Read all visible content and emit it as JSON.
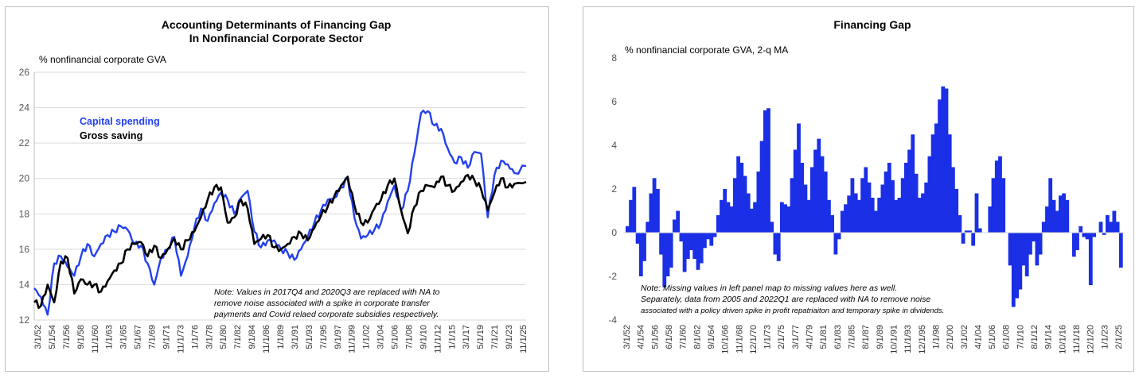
{
  "chart_data": [
    {
      "type": "line",
      "title_line1": "Accounting Determinants of Financing Gap",
      "title_line2": "In Nonfinancial Corporate Sector",
      "ylabel": "% nonfinancial corporate GVA",
      "ylim": [
        12,
        26
      ],
      "yticks": [
        "12",
        "14",
        "16",
        "18",
        "20",
        "22",
        "24",
        "26"
      ],
      "xticks": [
        "3/1/52",
        "5/1/54",
        "7/1/56",
        "9/1/58",
        "11/1/60",
        "1/1/63",
        "3/1/65",
        "5/1/67",
        "7/1/69",
        "9/1/71",
        "11/1/73",
        "1/1/76",
        "3/1/78",
        "5/1/80",
        "7/1/82",
        "9/1/84",
        "11/1/86",
        "1/1/89",
        "3/1/91",
        "5/1/93",
        "7/1/95",
        "9/1/97",
        "11/1/99",
        "1/1/02",
        "3/1/04",
        "5/1/06",
        "7/1/08",
        "9/1/10",
        "11/1/12",
        "1/1/15",
        "3/1/17",
        "5/1/19",
        "7/1/21",
        "9/1/23",
        "11/1/25"
      ],
      "x_start_year": 1952.0,
      "x_end_year": 2025.75,
      "series": [
        {
          "name": "Capital spending",
          "color": "#2340f0",
          "x": [
            1952,
            1953,
            1954,
            1955,
            1956,
            1957,
            1958,
            1959,
            1960,
            1961,
            1962,
            1963,
            1964,
            1965,
            1966,
            1967,
            1968,
            1969,
            1970,
            1971,
            1972,
            1973,
            1974,
            1975,
            1976,
            1977,
            1978,
            1979,
            1980,
            1981,
            1982,
            1983,
            1984,
            1985,
            1986,
            1987,
            1988,
            1989,
            1990,
            1991,
            1992,
            1993,
            1994,
            1995,
            1996,
            1997,
            1998,
            1999,
            2000,
            2001,
            2002,
            2003,
            2004,
            2005,
            2006,
            2007,
            2008,
            2009,
            2010,
            2011,
            2012,
            2013,
            2014,
            2015,
            2016,
            2017,
            2018,
            2019,
            2020,
            2021,
            2022,
            2023,
            2024,
            2025.75
          ],
          "values": [
            13.8,
            13.3,
            12.3,
            15.2,
            15.6,
            15.0,
            14.5,
            15.6,
            16.3,
            15.6,
            16.3,
            16.8,
            17.0,
            17.3,
            17.1,
            16.3,
            16.2,
            15.2,
            14.0,
            15.5,
            16.0,
            16.7,
            14.5,
            15.6,
            17.2,
            18.3,
            17.6,
            18.6,
            19.2,
            18.8,
            18.0,
            18.9,
            19.3,
            17.0,
            16.1,
            16.5,
            16.5,
            16.0,
            15.8,
            15.4,
            16.0,
            16.7,
            17.5,
            18.2,
            18.8,
            18.9,
            19.5,
            20.0,
            17.8,
            16.6,
            16.8,
            17.1,
            17.5,
            18.7,
            19.6,
            18.2,
            19.3,
            21.4,
            23.7,
            23.8,
            23.0,
            22.8,
            21.7,
            20.9,
            21.2,
            20.6,
            21.5,
            21.4,
            17.8,
            20.2,
            21.0,
            20.8,
            20.3,
            20.7
          ]
        },
        {
          "name": "Gross saving",
          "color": "#000000",
          "x": [
            1952,
            1953,
            1954,
            1955,
            1956,
            1957,
            1958,
            1959,
            1960,
            1961,
            1962,
            1963,
            1964,
            1965,
            1966,
            1967,
            1968,
            1969,
            1970,
            1971,
            1972,
            1973,
            1974,
            1975,
            1976,
            1977,
            1978,
            1979,
            1980,
            1981,
            1982,
            1983,
            1984,
            1985,
            1986,
            1987,
            1988,
            1989,
            1990,
            1991,
            1992,
            1993,
            1994,
            1995,
            1996,
            1997,
            1998,
            1999,
            2000,
            2001,
            2002,
            2003,
            2004,
            2005,
            2006,
            2007,
            2008,
            2009,
            2010,
            2011,
            2012,
            2013,
            2014,
            2015,
            2016,
            2017,
            2018,
            2019,
            2020,
            2021,
            2022,
            2023,
            2024,
            2025.75
          ],
          "values": [
            13.0,
            12.8,
            14.0,
            13.0,
            15.3,
            15.5,
            13.5,
            14.3,
            14.0,
            14.0,
            13.6,
            14.2,
            14.8,
            15.2,
            16.0,
            16.3,
            16.4,
            15.6,
            16.2,
            15.5,
            16.0,
            16.6,
            16.0,
            16.5,
            17.0,
            17.8,
            18.8,
            19.5,
            19.5,
            17.5,
            17.8,
            18.8,
            18.3,
            16.3,
            16.6,
            16.8,
            16.1,
            16.0,
            16.3,
            16.7,
            16.9,
            16.5,
            17.2,
            17.9,
            18.4,
            19.0,
            19.6,
            20.1,
            18.5,
            17.5,
            17.5,
            18.3,
            18.8,
            19.6,
            20.0,
            18.2,
            16.9,
            18.4,
            19.3,
            19.6,
            19.5,
            20.1,
            19.6,
            19.3,
            19.8,
            20.2,
            19.9,
            19.4,
            18.2,
            19.2,
            20.0,
            19.5,
            19.7,
            19.8
          ]
        }
      ],
      "note_lines": [
        "Note: Values in 2017Q4 and 2020Q3 are replaced with NA to",
        "remove noise associated with a spike in corporate transfer",
        "payments and Covid relaed corporate subsidies respectively."
      ]
    },
    {
      "type": "bar",
      "title": "Financing Gap",
      "ylabel": "% nonfinancial corporate GVA, 2-q MA",
      "ylim": [
        -4,
        8
      ],
      "yticks": [
        "-4",
        "-2",
        "0",
        "2",
        "4",
        "6",
        "8"
      ],
      "xticks": [
        "3/1/52",
        "4/1/54",
        "5/1/56",
        "6/1/58",
        "7/1/60",
        "8/1/62",
        "9/1/64",
        "10/1/66",
        "11/1/68",
        "12/1/70",
        "1/1/73",
        "2/1/75",
        "3/1/77",
        "4/1/79",
        "5/1/81",
        "6/1/83",
        "7/1/85",
        "8/1/87",
        "9/1/89",
        "10/1/91",
        "11/1/93",
        "12/1/95",
        "1/1/98",
        "2/1/00",
        "3/1/02",
        "4/1/04",
        "5/1/06",
        "6/1/08",
        "7/1/10",
        "8/1/12",
        "9/1/14",
        "10/1/16",
        "11/1/18",
        "12/1/20",
        "1/1/23",
        "2/1/25"
      ],
      "x_start_year": 1952.0,
      "x_end_year": 2025.75,
      "color": "#1a2fe6",
      "x": [
        1952,
        1952.5,
        1953,
        1953.5,
        1954,
        1954.5,
        1955,
        1955.5,
        1956,
        1956.5,
        1957,
        1957.5,
        1958,
        1958.5,
        1959,
        1959.5,
        1960,
        1960.5,
        1961,
        1961.5,
        1962,
        1962.5,
        1963,
        1963.5,
        1964,
        1964.5,
        1965,
        1965.5,
        1966,
        1966.5,
        1967,
        1967.5,
        1968,
        1968.5,
        1969,
        1969.5,
        1970,
        1970.5,
        1971,
        1971.5,
        1972,
        1972.5,
        1973,
        1973.5,
        1974,
        1974.5,
        1975,
        1975.5,
        1976,
        1976.5,
        1977,
        1977.5,
        1978,
        1978.5,
        1979,
        1979.5,
        1980,
        1980.5,
        1981,
        1981.5,
        1982,
        1982.5,
        1983,
        1983.5,
        1984,
        1984.5,
        1985,
        1985.5,
        1986,
        1986.5,
        1987,
        1987.5,
        1988,
        1988.5,
        1989,
        1989.5,
        1990,
        1990.5,
        1991,
        1991.5,
        1992,
        1992.5,
        1993,
        1993.5,
        1994,
        1994.5,
        1995,
        1995.5,
        1996,
        1996.5,
        1997,
        1997.5,
        1998,
        1998.5,
        1999,
        1999.5,
        2000,
        2000.5,
        2001,
        2001.5,
        2002,
        2002.5,
        2003,
        2003.5,
        2004,
        2004.5,
        2005,
        2005.5,
        2006,
        2006.5,
        2007,
        2007.5,
        2008,
        2008.5,
        2009,
        2009.5,
        2010,
        2010.5,
        2011,
        2011.5,
        2012,
        2012.5,
        2013,
        2013.5,
        2014,
        2014.5,
        2015,
        2015.5,
        2016,
        2016.5,
        2017,
        2017.5,
        2018,
        2018.5,
        2019,
        2019.5,
        2020,
        2020.5,
        2021,
        2021.5,
        2022,
        2022.5,
        2023,
        2023.5,
        2024,
        2024.5,
        2025,
        2025.5
      ],
      "values": [
        0.3,
        1.5,
        2.1,
        -0.5,
        -2.0,
        -1.3,
        0.5,
        1.8,
        2.5,
        2.0,
        -1.0,
        -2.5,
        -2.0,
        -1.6,
        0.6,
        1.0,
        -0.4,
        -1.8,
        -1.2,
        -0.8,
        -1.2,
        -1.7,
        -1.4,
        -0.7,
        -0.3,
        -0.6,
        -0.2,
        0.8,
        1.5,
        2.0,
        1.4,
        1.2,
        2.5,
        3.5,
        3.2,
        2.6,
        1.8,
        1.1,
        1.4,
        2.8,
        4.2,
        5.6,
        5.7,
        0.5,
        -1.0,
        -1.3,
        1.4,
        1.3,
        1.2,
        2.5,
        3.8,
        5.0,
        3.2,
        2.2,
        1.5,
        3.0,
        3.8,
        4.3,
        3.5,
        2.8,
        1.5,
        0.8,
        -1.0,
        -0.3,
        1.0,
        1.3,
        1.7,
        2.5,
        1.8,
        1.5,
        2.5,
        3.0,
        2.3,
        1.6,
        1.0,
        1.6,
        2.2,
        2.8,
        3.2,
        2.4,
        1.5,
        1.6,
        2.5,
        3.2,
        3.8,
        4.5,
        2.7,
        1.6,
        1.8,
        2.3,
        3.5,
        4.5,
        5.0,
        6.1,
        6.7,
        6.6,
        4.5,
        3.0,
        2.0,
        0.8,
        -0.5,
        0.1,
        0.1,
        -0.6,
        1.8,
        0.2,
        0.0,
        0.0,
        1.2,
        2.5,
        3.3,
        3.5,
        2.5,
        0.0,
        -1.5,
        -3.4,
        -3.0,
        -2.6,
        -1.5,
        -2.0,
        -1.0,
        -0.4,
        -1.5,
        -1.0,
        0.5,
        1.2,
        2.5,
        1.5,
        1.0,
        1.7,
        1.8,
        1.5,
        0.0,
        -1.1,
        -0.8,
        0.3,
        -0.2,
        -0.3,
        -2.4,
        -0.2,
        0.0,
        0.5,
        -0.1,
        0.8,
        0.5,
        1.0,
        0.5,
        -1.6
      ],
      "note_lines": [
        "Note: Missing values in left panel map to missing values here as well.",
        "Separately, data from 2005 and 2022Q1 are replaced with NA to remove noise",
        "associated with a policy driven spike in profit repatriaiton and temporary spike in dividends."
      ]
    }
  ]
}
